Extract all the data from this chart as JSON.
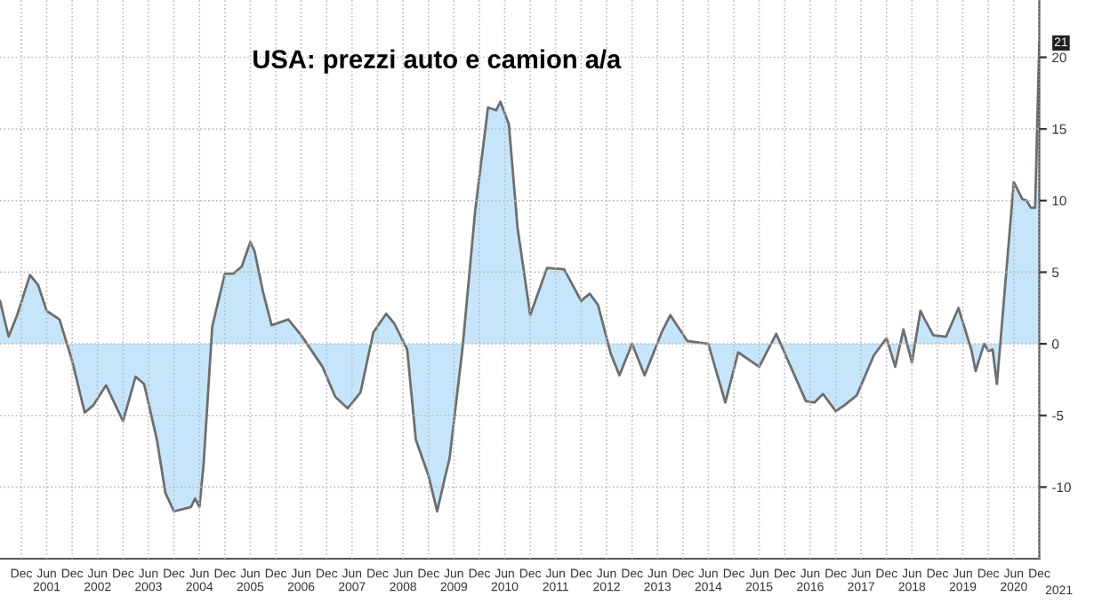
{
  "chart_data": {
    "type": "area",
    "title": "USA: prezzi auto e camion a/a",
    "x": [
      "2000-07",
      "2000-09",
      "2000-11",
      "2001-02",
      "2001-04",
      "2001-06",
      "2001-09",
      "2001-12",
      "2002-03",
      "2002-05",
      "2002-08",
      "2002-12",
      "2003-03",
      "2003-05",
      "2003-08",
      "2003-10",
      "2003-12",
      "2004-04",
      "2004-05",
      "2004-06",
      "2004-07",
      "2004-09",
      "2004-12",
      "2005-02",
      "2005-04",
      "2005-06",
      "2005-07",
      "2005-09",
      "2005-11",
      "2006-03",
      "2006-06",
      "2006-11",
      "2007-02",
      "2007-05",
      "2007-08",
      "2007-11",
      "2008-02",
      "2008-04",
      "2008-07",
      "2008-09",
      "2008-12",
      "2009-02",
      "2009-04",
      "2009-05",
      "2009-08",
      "2009-11",
      "2010-02",
      "2010-04",
      "2010-05",
      "2010-07",
      "2010-09",
      "2010-12",
      "2011-04",
      "2011-08",
      "2011-12",
      "2012-02",
      "2012-04",
      "2012-07",
      "2012-09",
      "2012-12",
      "2013-03",
      "2013-07",
      "2013-09",
      "2014-01",
      "2014-06",
      "2014-10",
      "2015-01",
      "2015-06",
      "2015-10",
      "2016-05",
      "2016-07",
      "2016-09",
      "2016-12",
      "2017-02",
      "2017-05",
      "2017-09",
      "2017-12",
      "2018-02",
      "2018-04",
      "2018-06",
      "2018-08",
      "2018-09",
      "2018-11",
      "2019-02",
      "2019-05",
      "2019-08",
      "2019-09",
      "2019-11",
      "2019-12",
      "2020-01",
      "2020-02",
      "2020-06",
      "2020-08",
      "2020-09",
      "2020-10",
      "2020-11",
      "2020-12"
    ],
    "series": [
      {
        "color": "#c6e5fb",
        "values": [
          3.0,
          0.5,
          2.0,
          4.8,
          4.1,
          2.3,
          1.7,
          -1.2,
          -4.8,
          -4.3,
          -2.9,
          -5.4,
          -2.3,
          -2.8,
          -6.7,
          -10.4,
          -11.7,
          -11.4,
          -10.8,
          -11.4,
          -8.4,
          1.2,
          4.9,
          4.9,
          5.4,
          7.1,
          6.5,
          3.6,
          1.3,
          1.7,
          0.6,
          -1.6,
          -3.7,
          -4.5,
          -3.4,
          0.8,
          2.1,
          1.4,
          -0.4,
          -6.7,
          -9.2,
          -11.7,
          -9.2,
          -8.0,
          -0.4,
          9.3,
          16.5,
          16.3,
          16.9,
          15.3,
          8.1,
          2.0,
          5.3,
          5.2,
          3.0,
          3.5,
          2.7,
          -0.7,
          -2.2,
          0.0,
          -2.2,
          0.8,
          2.0,
          0.2,
          0.0,
          -4.1,
          -0.6,
          -1.6,
          0.7,
          -4.0,
          -4.1,
          -3.5,
          -4.7,
          -4.3,
          -3.6,
          -0.8,
          0.4,
          -1.6,
          1.0,
          -1.3,
          2.3,
          1.7,
          0.6,
          0.5,
          2.5,
          -0.4,
          -1.9,
          0.0,
          -0.5,
          -0.4,
          -2.8,
          11.3,
          10.1,
          10.0,
          9.5,
          9.5,
          21.0
        ]
      }
    ],
    "annotations": [
      {
        "text": "21",
        "x": "2020-12",
        "y": 21.0
      },
      "2021"
    ],
    "xlim": [
      "2000-07",
      "2020-12"
    ],
    "xticks": [
      {
        "value": "2000-12",
        "label": "Dec"
      },
      {
        "value": "2001-06",
        "label": "Jun\n2001"
      },
      {
        "value": "2001-12",
        "label": "Dec"
      },
      {
        "value": "2002-06",
        "label": "Jun\n2002"
      },
      {
        "value": "2002-12",
        "label": "Dec"
      },
      {
        "value": "2003-06",
        "label": "Jun\n2003"
      },
      {
        "value": "2003-12",
        "label": "Dec"
      },
      {
        "value": "2004-06",
        "label": "Jun\n2004"
      },
      {
        "value": "2004-12",
        "label": "Dec"
      },
      {
        "value": "2005-06",
        "label": "Jun\n2005"
      },
      {
        "value": "2005-12",
        "label": "Dec"
      },
      {
        "value": "2006-06",
        "label": "Jun\n2006"
      },
      {
        "value": "2006-12",
        "label": "Dec"
      },
      {
        "value": "2007-06",
        "label": "Jun\n2007"
      },
      {
        "value": "2007-12",
        "label": "Dec"
      },
      {
        "value": "2008-06",
        "label": "Jun\n2008"
      },
      {
        "value": "2008-12",
        "label": "Dec"
      },
      {
        "value": "2009-06",
        "label": "Jun\n2009"
      },
      {
        "value": "2009-12",
        "label": "Dec"
      },
      {
        "value": "2010-06",
        "label": "Jun\n2010"
      },
      {
        "value": "2010-12",
        "label": "Dec"
      },
      {
        "value": "2011-06",
        "label": "Jun\n2011"
      },
      {
        "value": "2011-12",
        "label": "Dec"
      },
      {
        "value": "2012-06",
        "label": "Jun\n2012"
      },
      {
        "value": "2012-12",
        "label": "Dec"
      },
      {
        "value": "2013-06",
        "label": "Jun\n2013"
      },
      {
        "value": "2013-12",
        "label": "Dec"
      },
      {
        "value": "2014-06",
        "label": "Jun\n2014"
      },
      {
        "value": "2014-12",
        "label": "Dec"
      },
      {
        "value": "2015-06",
        "label": "Jun\n2015"
      },
      {
        "value": "2015-12",
        "label": "Dec"
      },
      {
        "value": "2016-06",
        "label": "Jun\n2016"
      },
      {
        "value": "2016-12",
        "label": "Dec"
      },
      {
        "value": "2017-06",
        "label": "Jun\n2017"
      },
      {
        "value": "2017-12",
        "label": "Dec"
      },
      {
        "value": "2018-06",
        "label": "Jun\n2018"
      },
      {
        "value": "2018-12",
        "label": "Dec"
      },
      {
        "value": "2019-06",
        "label": "Jun\n2019"
      },
      {
        "value": "2019-12",
        "label": "Dec"
      },
      {
        "value": "2020-06",
        "label": "Jun\n2020"
      },
      {
        "value": "2020-12",
        "label": "Dec"
      }
    ],
    "ylim": [
      -15,
      24
    ],
    "yticks": [
      -10,
      -5,
      0,
      5,
      10,
      15,
      20
    ],
    "grid": true,
    "line_style": "solid"
  }
}
